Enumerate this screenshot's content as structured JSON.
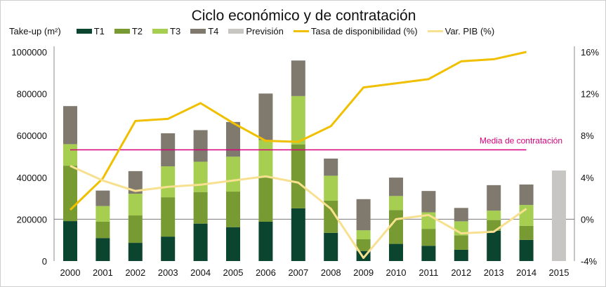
{
  "chart_data": {
    "type": "bar",
    "title": "Ciclo económico y de contratación",
    "ylabel": "Take-up (m²)",
    "ylim": [
      0,
      1000000
    ],
    "y_ticks": [
      "0",
      "200000",
      "400000",
      "600000",
      "800000",
      "1000000"
    ],
    "y2lim": [
      -4,
      16
    ],
    "y2_ticks": [
      "-4%",
      "0%",
      "4%",
      "8%",
      "12%",
      "16%"
    ],
    "categories": [
      "2000",
      "2001",
      "2002",
      "2003",
      "2004",
      "2005",
      "2006",
      "2007",
      "2008",
      "2009",
      "2010",
      "2011",
      "2012",
      "2013",
      "2014",
      "2015"
    ],
    "stacked": true,
    "series": [
      {
        "name": "T1",
        "color": "#0b4530",
        "values": [
          191000,
          110000,
          87000,
          117000,
          179000,
          162000,
          188000,
          252000,
          135000,
          48000,
          82000,
          73000,
          54000,
          145000,
          101000,
          null
        ]
      },
      {
        "name": "T2",
        "color": "#789a32",
        "values": [
          265000,
          78000,
          131000,
          188000,
          151000,
          170000,
          211000,
          305000,
          154000,
          56000,
          162000,
          81000,
          69000,
          51000,
          67000,
          null
        ]
      },
      {
        "name": "T3",
        "color": "#a6cf52",
        "values": [
          103000,
          75000,
          104000,
          148000,
          145000,
          167000,
          180000,
          232000,
          119000,
          43000,
          67000,
          79000,
          67000,
          45000,
          100000,
          null
        ]
      },
      {
        "name": "T4",
        "color": "#7f7a6d",
        "values": [
          182000,
          74000,
          108000,
          158000,
          151000,
          166000,
          222000,
          170000,
          82000,
          149000,
          88000,
          102000,
          64000,
          122000,
          98000,
          null
        ]
      },
      {
        "name": "Previsión",
        "color": "#c8c6c2",
        "values": [
          null,
          null,
          null,
          null,
          null,
          null,
          null,
          null,
          null,
          null,
          null,
          null,
          null,
          null,
          null,
          433000
        ]
      }
    ],
    "lines": [
      {
        "name": "Tasa de disponibilidad (%)",
        "color": "#f0c000",
        "axis": "right",
        "values": [
          0.9,
          3.9,
          9.4,
          9.6,
          11.1,
          9.2,
          7.5,
          7.4,
          8.9,
          12.6,
          13.0,
          13.4,
          15.1,
          15.3,
          16.0,
          null
        ]
      },
      {
        "name": "Var. PIB (%)",
        "color": "#f7e08f",
        "axis": "right",
        "values": [
          5.1,
          3.7,
          2.7,
          3.1,
          3.3,
          3.7,
          4.1,
          3.5,
          1.0,
          -3.7,
          0.0,
          0.4,
          -1.35,
          -1.2,
          1.0,
          null
        ]
      }
    ],
    "reference_line": {
      "label": "Media de contratación",
      "value": 532000,
      "color": "#d6007a"
    },
    "legend_position": "top",
    "grid": false
  }
}
